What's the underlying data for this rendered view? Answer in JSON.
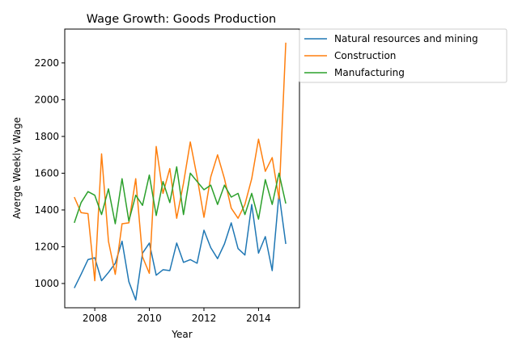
{
  "chart_data": {
    "type": "line",
    "title": "Wage Growth: Goods Production",
    "xlabel": "Year",
    "ylabel": "Averge Weekly Wage",
    "xlim": [
      2006.9,
      2015.5
    ],
    "ylim": [
      868,
      2384
    ],
    "xticks": [
      2008,
      2010,
      2012,
      2014
    ],
    "yticks": [
      1000,
      1200,
      1400,
      1600,
      1800,
      2000,
      2200
    ],
    "grid": false,
    "legend_position": "outside-top-right",
    "x": [
      2007.25,
      2007.5,
      2007.75,
      2008.0,
      2008.25,
      2008.5,
      2008.75,
      2009.0,
      2009.25,
      2009.5,
      2009.75,
      2010.0,
      2010.25,
      2010.5,
      2010.75,
      2011.0,
      2011.25,
      2011.5,
      2011.75,
      2012.0,
      2012.25,
      2012.5,
      2012.75,
      2013.0,
      2013.25,
      2013.5,
      2013.75,
      2014.0,
      2014.25,
      2014.5,
      2014.75,
      2015.0
    ],
    "series": [
      {
        "name": "Natural resources and mining",
        "color": "#1f77b4",
        "values": [
          975,
          1050,
          1130,
          1140,
          1015,
          1060,
          1110,
          1230,
          1010,
          910,
          1165,
          1220,
          1045,
          1075,
          1070,
          1220,
          1115,
          1130,
          1110,
          1290,
          1195,
          1135,
          1215,
          1330,
          1190,
          1155,
          1430,
          1165,
          1255,
          1070,
          1490,
          1215
        ]
      },
      {
        "name": "Construction",
        "color": "#ff7f0e",
        "values": [
          1470,
          1385,
          1380,
          1015,
          1705,
          1230,
          1050,
          1325,
          1330,
          1570,
          1145,
          1055,
          1745,
          1490,
          1625,
          1355,
          1545,
          1770,
          1580,
          1360,
          1580,
          1700,
          1570,
          1410,
          1355,
          1430,
          1570,
          1785,
          1610,
          1685,
          1460,
          2310
        ]
      },
      {
        "name": "Manufacturing",
        "color": "#2ca02c",
        "values": [
          1330,
          1440,
          1500,
          1480,
          1375,
          1515,
          1325,
          1570,
          1340,
          1480,
          1425,
          1590,
          1370,
          1555,
          1440,
          1635,
          1375,
          1600,
          1555,
          1510,
          1535,
          1430,
          1535,
          1470,
          1490,
          1375,
          1490,
          1350,
          1565,
          1430,
          1600,
          1435
        ]
      }
    ]
  }
}
